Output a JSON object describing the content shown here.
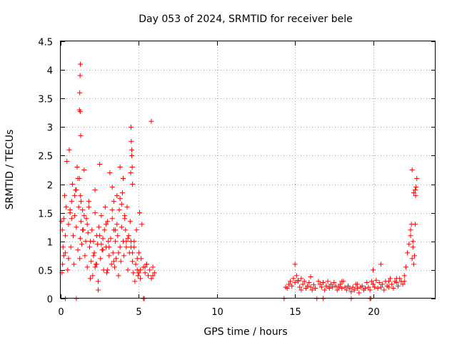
{
  "chart_data": {
    "type": "scatter",
    "title": "Day 053 of 2024, SRMTID for receiver bele",
    "xlabel": "GPS time / hours",
    "ylabel": "SRMTID / TECUs",
    "xlim": [
      0,
      24
    ],
    "ylim": [
      0,
      4.5
    ],
    "xticks": [
      0,
      5,
      10,
      15,
      20
    ],
    "yticks": [
      0,
      0.5,
      1,
      1.5,
      2,
      2.5,
      3,
      3.5,
      4,
      4.5
    ],
    "grid": true,
    "marker": "+",
    "color": "#ff0000",
    "series": [
      {
        "name": "SRMTID",
        "x": [
          0.05,
          0.08,
          0.1,
          0.12,
          0.15,
          0.2,
          0.25,
          0.3,
          0.35,
          0.4,
          0.45,
          0.5,
          0.55,
          0.6,
          0.65,
          0.7,
          0.75,
          0.8,
          0.85,
          0.9,
          0.95,
          1.0,
          1.05,
          1.1,
          1.15,
          1.2,
          1.22,
          1.25,
          1.27,
          1.3,
          1.35,
          1.4,
          1.45,
          1.5,
          1.55,
          1.6,
          1.65,
          1.7,
          1.75,
          1.8,
          1.85,
          1.9,
          1.95,
          2.0,
          2.05,
          2.1,
          2.15,
          2.2,
          2.25,
          2.3,
          2.35,
          2.4,
          2.45,
          2.5,
          2.55,
          2.6,
          2.65,
          2.7,
          2.75,
          2.8,
          2.85,
          2.9,
          2.95,
          3.0,
          3.05,
          3.1,
          3.15,
          3.2,
          3.25,
          3.3,
          3.35,
          3.4,
          3.45,
          3.5,
          3.55,
          3.6,
          3.65,
          3.7,
          3.75,
          3.8,
          3.85,
          3.9,
          3.95,
          4.0,
          4.05,
          4.1,
          4.15,
          4.2,
          4.25,
          4.3,
          4.35,
          4.4,
          4.45,
          4.5,
          4.55,
          4.6,
          4.65,
          4.7,
          4.75,
          4.8,
          4.85,
          4.9,
          4.95,
          5.0,
          5.05,
          5.1,
          5.15,
          5.2,
          5.3,
          5.4,
          5.5,
          5.6,
          5.7,
          5.8,
          5.9,
          6.0,
          0.3,
          0.5,
          0.7,
          0.9,
          1.1,
          1.3,
          1.5,
          1.7,
          1.9,
          2.1,
          2.3,
          2.5,
          2.7,
          2.9,
          3.1,
          3.3,
          3.5,
          3.7,
          3.9,
          4.1,
          4.3,
          4.5,
          4.7,
          4.9,
          5.1,
          5.5,
          5.9,
          0.2,
          0.6,
          1.0,
          1.4,
          1.8,
          2.2,
          2.6,
          3.0,
          3.4,
          3.8,
          4.2,
          4.6,
          5.0,
          5.4,
          5.8,
          1.2,
          1.22,
          1.24,
          1.26,
          1.28,
          1.25,
          4.5,
          4.52,
          4.55,
          4.48,
          4.6,
          4.58,
          3.3,
          3.4,
          3.6,
          3.8,
          4.0,
          2.2,
          2.4,
          14.4,
          14.5,
          14.6,
          14.7,
          14.8,
          14.9,
          15.0,
          15.1,
          15.2,
          15.3,
          15.4,
          15.5,
          15.6,
          15.7,
          15.8,
          15.9,
          16.0,
          16.1,
          16.2,
          16.3,
          16.5,
          16.6,
          16.7,
          16.8,
          16.9,
          17.0,
          17.1,
          17.2,
          17.3,
          17.4,
          17.5,
          17.6,
          17.7,
          17.8,
          17.9,
          18.0,
          18.1,
          18.2,
          18.3,
          18.4,
          18.5,
          18.6,
          18.7,
          18.8,
          18.9,
          19.0,
          19.1,
          19.2,
          19.3,
          19.4,
          19.5,
          19.6,
          19.7,
          19.8,
          19.9,
          20.0,
          20.1,
          20.2,
          20.3,
          20.4,
          20.5,
          20.6,
          20.7,
          20.8,
          20.9,
          21.0,
          21.1,
          21.2,
          21.3,
          21.4,
          21.5,
          21.6,
          21.7,
          21.8,
          21.9,
          22.0,
          22.1,
          22.2,
          22.3,
          22.4,
          22.45,
          22.5,
          22.55,
          22.6,
          22.65,
          22.7,
          22.72,
          22.75,
          22.8,
          22.5,
          22.6,
          22.7,
          22.4,
          22.55,
          15.0,
          15.2,
          15.4,
          16.0,
          17.2,
          18.0,
          19.0,
          20.0,
          20.5,
          21.0,
          21.5,
          22.0,
          0.3,
          1.0,
          5.3,
          5.35,
          14.3,
          16.4,
          16.8,
          18.6,
          19.8,
          19.85
        ],
        "y": [
          1.35,
          0.45,
          1.2,
          0.6,
          0.9,
          1.4,
          1.8,
          0.8,
          1.6,
          2.4,
          0.5,
          1.3,
          2.6,
          1.5,
          0.9,
          1.7,
          2.0,
          1.1,
          0.6,
          1.45,
          1.9,
          1.25,
          2.3,
          0.85,
          1.6,
          2.1,
          0.7,
          1.05,
          1.8,
          1.35,
          0.95,
          1.55,
          1.2,
          2.25,
          0.75,
          1.0,
          1.4,
          0.55,
          1.15,
          1.7,
          0.9,
          0.35,
          0.65,
          1.2,
          0.4,
          1.0,
          0.8,
          1.5,
          0.6,
          1.1,
          0.95,
          0.3,
          1.25,
          2.35,
          0.7,
          1.45,
          0.85,
          1.05,
          0.5,
          1.2,
          1.6,
          0.9,
          0.45,
          1.35,
          1.0,
          0.75,
          2.2,
          1.05,
          0.6,
          1.4,
          0.8,
          1.2,
          0.55,
          1.0,
          0.7,
          1.3,
          1.1,
          0.4,
          1.55,
          0.9,
          0.65,
          1.25,
          1.85,
          1.0,
          0.75,
          1.4,
          1.2,
          0.9,
          1.6,
          0.5,
          1.1,
          0.8,
          1.35,
          1.0,
          2.6,
          0.65,
          0.45,
          0.9,
          0.3,
          0.6,
          1.2,
          0.5,
          0.4,
          0.8,
          1.5,
          0.35,
          0.7,
          1.3,
          0.55,
          0.45,
          0.6,
          0.4,
          0.5,
          0.35,
          0.55,
          0.45,
          1.1,
          0.7,
          1.4,
          1.8,
          2.1,
          1.7,
          1.45,
          1.3,
          1.0,
          0.75,
          0.6,
          1.1,
          0.85,
          1.3,
          0.9,
          1.55,
          1.2,
          0.8,
          1.65,
          1.45,
          1.05,
          0.9,
          1.0,
          0.7,
          0.5,
          0.6,
          0.4,
          0.75,
          1.55,
          1.9,
          1.2,
          1.6,
          0.55,
          0.95,
          0.5,
          0.65,
          1.75,
          1.0,
          0.8,
          0.45,
          0.55,
          3.1,
          3.3,
          3.6,
          3.9,
          4.1,
          2.85,
          3.27,
          3.0,
          2.75,
          2.5,
          2.2,
          2.0,
          2.3,
          1.95,
          1.7,
          1.8,
          2.3,
          2.1,
          1.9,
          0.15,
          0.2,
          0.18,
          0.25,
          0.3,
          0.22,
          0.35,
          0.28,
          0.4,
          0.32,
          0.2,
          0.15,
          0.25,
          0.3,
          0.18,
          0.22,
          0.28,
          0.2,
          0.15,
          0.24,
          0.18,
          0.3,
          0.25,
          0.2,
          0.28,
          0.15,
          0.22,
          0.3,
          0.18,
          0.25,
          0.2,
          0.28,
          0.22,
          0.15,
          0.2,
          0.25,
          0.18,
          0.3,
          0.2,
          0.15,
          0.22,
          0.18,
          0.12,
          0.2,
          0.15,
          0.25,
          0.18,
          0.1,
          0.2,
          0.22,
          0.15,
          0.18,
          0.28,
          0.2,
          0.15,
          0.3,
          0.25,
          0.2,
          0.32,
          0.18,
          0.28,
          0.2,
          0.25,
          0.15,
          0.3,
          0.22,
          0.2,
          0.35,
          0.25,
          0.18,
          0.3,
          0.28,
          0.22,
          0.35,
          0.3,
          0.25,
          0.4,
          0.55,
          0.8,
          0.95,
          1.1,
          1.3,
          0.7,
          1.0,
          0.6,
          0.75,
          1.3,
          1.8,
          1.95,
          2.1,
          2.25,
          1.85,
          1.9,
          1.2,
          0.9,
          0.6,
          0.3,
          0.35,
          0.38,
          0.2,
          0.3,
          0.25,
          0.5,
          0.6,
          0.3,
          0.35,
          0.3,
          0.0,
          0.0,
          0.0,
          0.0,
          0.0,
          0.0,
          0.0,
          0.0,
          0.0,
          0.0
        ]
      }
    ]
  }
}
